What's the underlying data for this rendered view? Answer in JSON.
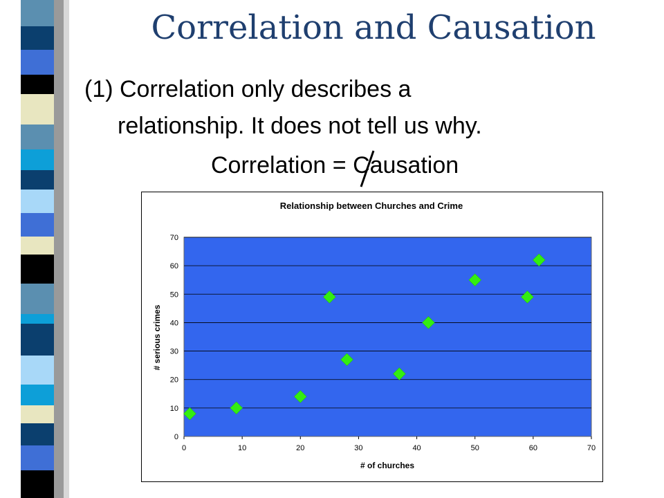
{
  "slide": {
    "title": "Correlation and Causation",
    "point_line1": "(1) Correlation only describes a",
    "point_line2": "relationship.  It does not tell us why.",
    "formula_left": "Correlation",
    "formula_symbol": "=",
    "formula_right": "Causation",
    "title_color": "#1f3f6f"
  },
  "chart_data": {
    "type": "scatter",
    "title": "Relationship between Churches and Crime",
    "xlabel": "# of churches",
    "ylabel": "# serious crimes",
    "xlim": [
      0,
      70
    ],
    "ylim": [
      0,
      70
    ],
    "xticks": [
      0,
      10,
      20,
      30,
      40,
      50,
      60,
      70
    ],
    "yticks": [
      0,
      10,
      20,
      30,
      40,
      50,
      60,
      70
    ],
    "grid": true,
    "legend": "none",
    "plot_background": "#3366ee",
    "marker_color": "#33ee11",
    "marker": "diamond",
    "points": [
      {
        "x": 1,
        "y": 8
      },
      {
        "x": 9,
        "y": 10
      },
      {
        "x": 20,
        "y": 14
      },
      {
        "x": 25,
        "y": 49
      },
      {
        "x": 28,
        "y": 27
      },
      {
        "x": 37,
        "y": 22
      },
      {
        "x": 42,
        "y": 40
      },
      {
        "x": 50,
        "y": 55
      },
      {
        "x": 59,
        "y": 49
      },
      {
        "x": 61,
        "y": 62
      }
    ]
  }
}
